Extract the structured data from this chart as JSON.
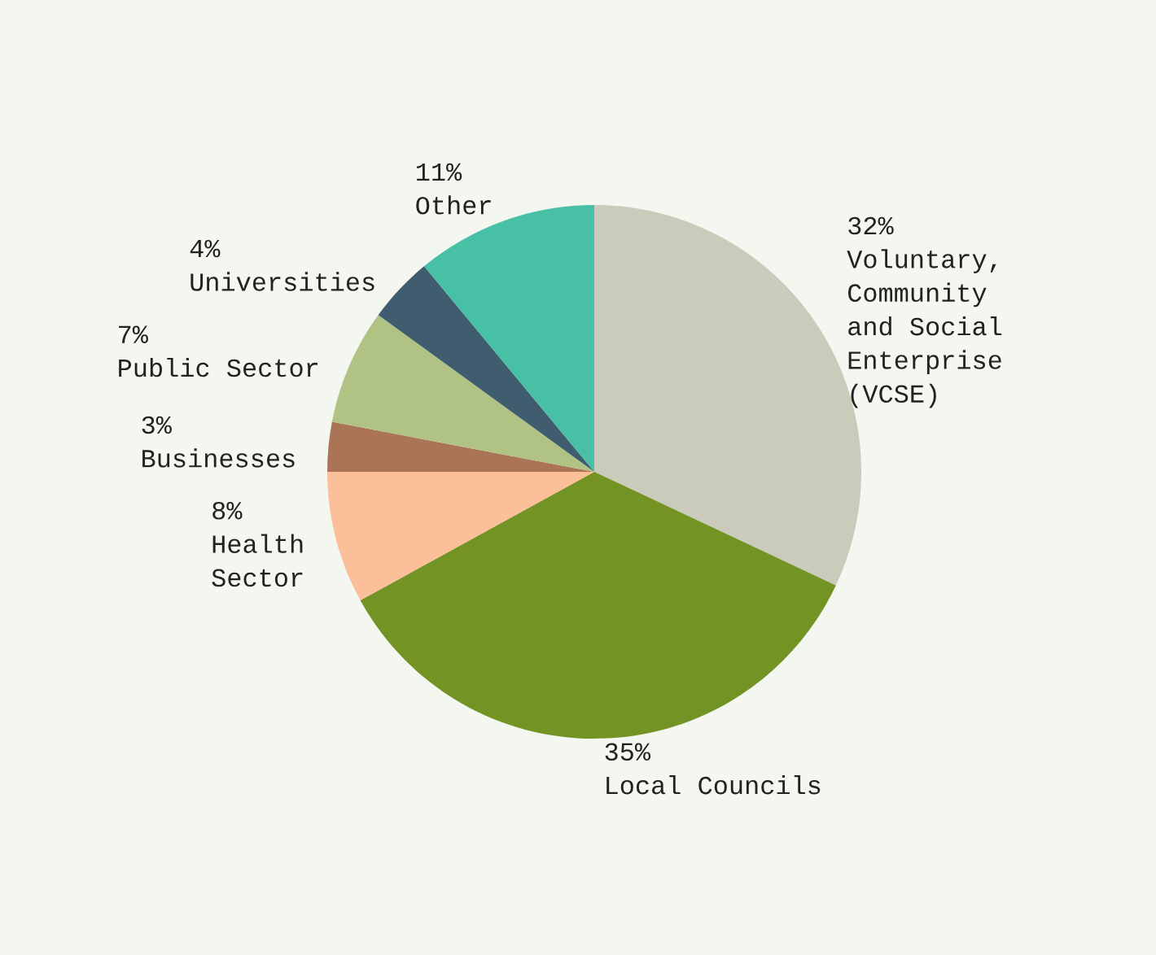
{
  "chart_data": {
    "type": "pie",
    "categories": [
      "Voluntary,\nCommunity\nand Social\nEnterprise\n(VCSE)",
      "Local Councils",
      "Health\nSector",
      "Businesses",
      "Public Sector",
      "Universities",
      "Other"
    ],
    "values": [
      32,
      35,
      8,
      3,
      7,
      4,
      11
    ],
    "colors": [
      "#cbcbbb",
      "#739425",
      "#fbbf99",
      "#ac7457",
      "#b0c385",
      "#3f5d6e",
      "#48c0a5"
    ],
    "value_labels": [
      "32%",
      "35%",
      "8%",
      "3%",
      "7%",
      "4%",
      "11%"
    ]
  }
}
